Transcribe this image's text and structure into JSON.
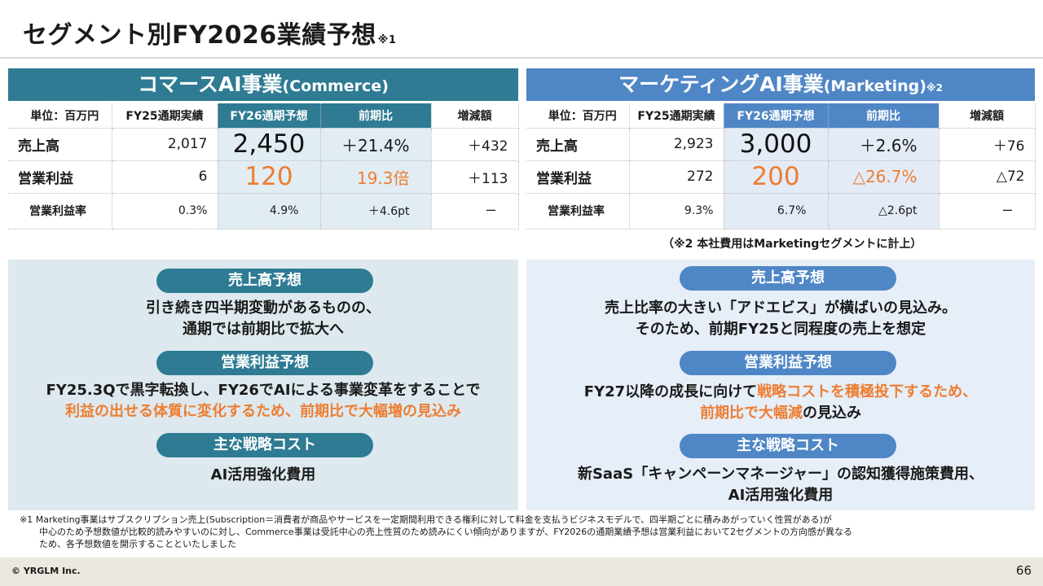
{
  "title": {
    "main": "セグメント別FY2026業績予想",
    "note": "※1"
  },
  "commerce": {
    "header": {
      "main": "コマースAI事業",
      "sub": "(Commerce)"
    },
    "table": {
      "unit": "単位：百万円",
      "cols": [
        "FY25通期実績",
        "FY26通期予想",
        "前期比",
        "増減額"
      ],
      "rows": [
        {
          "label": "売上高",
          "fy25": "2,017",
          "fy26": "2,450",
          "ratio": "＋21.4%",
          "diff": "＋432"
        },
        {
          "label": "営業利益",
          "fy25": "6",
          "fy26": "120",
          "ratio": "19.3倍",
          "diff": "＋113"
        },
        {
          "label": "営業利益率",
          "fy25": "0.3%",
          "fy26": "4.9%",
          "ratio": "＋4.6pt",
          "diff": "ー"
        }
      ]
    },
    "panel": {
      "sales_title": "売上高予想",
      "sales_lines": [
        "引き続き四半期変動があるものの、",
        "通期では前期比で拡大へ"
      ],
      "profit_title": "営業利益予想",
      "profit_line1": "FY25.3Qで黒字転換し、FY26でAIによる事業変革をすることで",
      "profit_line2": "利益の出せる体質に変化するため、前期比で大幅増の見込み",
      "cost_title": "主な戦略コスト",
      "cost_line": "AI活用強化費用"
    }
  },
  "marketing": {
    "header": {
      "main": "マーケティングAI事業",
      "sub": "(Marketing)",
      "note": "※2"
    },
    "table": {
      "unit": "単位：百万円",
      "cols": [
        "FY25通期実績",
        "FY26通期予想",
        "前期比",
        "増減額"
      ],
      "rows": [
        {
          "label": "売上高",
          "fy25": "2,923",
          "fy26": "3,000",
          "ratio": "＋2.6%",
          "diff": "＋76"
        },
        {
          "label": "営業利益",
          "fy25": "272",
          "fy26": "200",
          "ratio": "△26.7%",
          "diff": "△72"
        },
        {
          "label": "営業利益率",
          "fy25": "9.3%",
          "fy26": "6.7%",
          "ratio": "△2.6pt",
          "diff": "ー"
        }
      ]
    },
    "table_note": "（※2 本社費用はMarketingセグメントに計上）",
    "panel": {
      "sales_title": "売上高予想",
      "sales_lines": [
        "売上比率の大きい「アドエビス」が横ばいの見込み。",
        "そのため、前期FY25と同程度の売上を想定"
      ],
      "profit_title": "営業利益予想",
      "profit_line1_a": "FY27以降の成長に向けて",
      "profit_line1_b": "戦略コストを積極投下するため、",
      "profit_line2_a": "前期比で大幅減",
      "profit_line2_b": "の見込み",
      "cost_title": "主な戦略コスト",
      "cost_lines": [
        "新SaaS「キャンペーンマネージャー」の認知獲得施策費用、",
        "AI活用強化費用"
      ]
    }
  },
  "footnote": [
    "※1  Marketing事業はサブスクリプション売上(Subscription＝消費者が商品やサービスを一定期間利用できる権利に対して料金を支払うビジネスモデルで、四半期ごとに積みあがっていく性質がある)が",
    "中心のため予想数値が比較的読みやすいのに対し、Commerce事業は受託中心の売上性質のため読みにくい傾向がありますが、FY2026の通期業績予想は営業利益において2セグメントの方向感が異なる",
    "ため、各予想数値を開示することといたしました"
  ],
  "footer": {
    "copyright": "© YRGLM Inc.",
    "page": "66"
  },
  "colors": {
    "commerce": "#2e7b93",
    "marketing": "#4f86c6",
    "accent": "#ed7d31"
  }
}
